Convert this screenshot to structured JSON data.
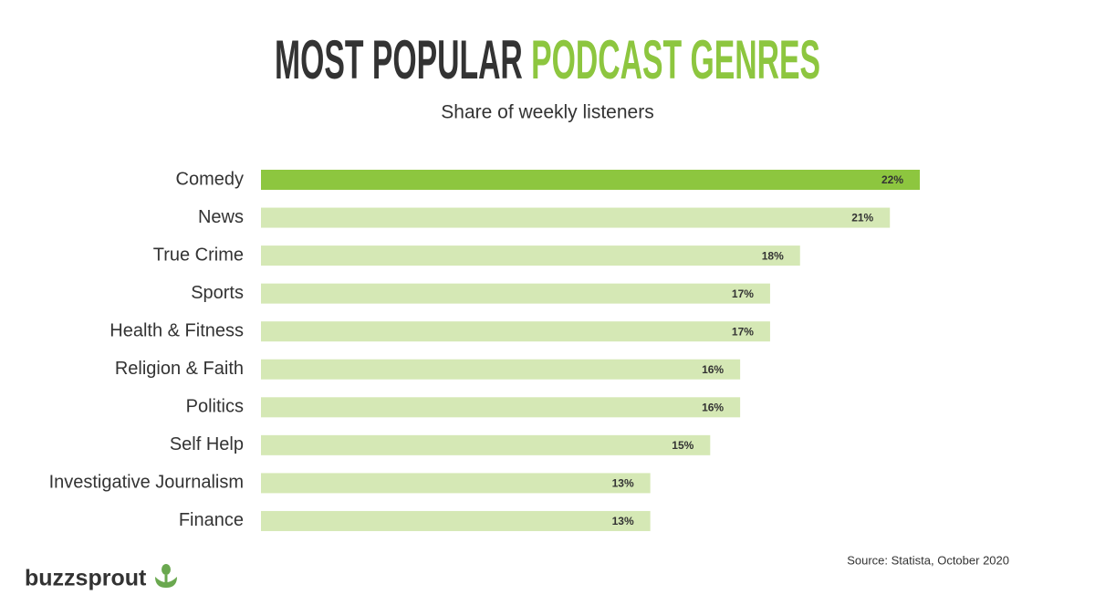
{
  "chart_data": {
    "type": "bar",
    "orientation": "horizontal",
    "title": [
      "MOST POPULAR",
      "PODCAST GENRES"
    ],
    "title_colors": [
      "#333333",
      "#8dc63f"
    ],
    "subtitle": "Share of weekly listeners",
    "categories": [
      "Comedy",
      "News",
      "True Crime",
      "Sports",
      "Health & Fitness",
      "Religion & Faith",
      "Politics",
      "Self Help",
      "Investigative Journalism",
      "Finance"
    ],
    "values": [
      22,
      21,
      18,
      17,
      17,
      16,
      16,
      15,
      13,
      13
    ],
    "value_labels": [
      "22%",
      "21%",
      "18%",
      "17%",
      "17%",
      "16%",
      "16%",
      "15%",
      "13%",
      "13%"
    ],
    "colors": [
      "#8dc63f",
      "#d5e8b5",
      "#d5e8b5",
      "#d5e8b5",
      "#d5e8b5",
      "#d5e8b5",
      "#d5e8b5",
      "#d5e8b5",
      "#d5e8b5",
      "#d5e8b5"
    ],
    "source": "Source: Statista, October 2020",
    "brand": "buzzsprout"
  }
}
